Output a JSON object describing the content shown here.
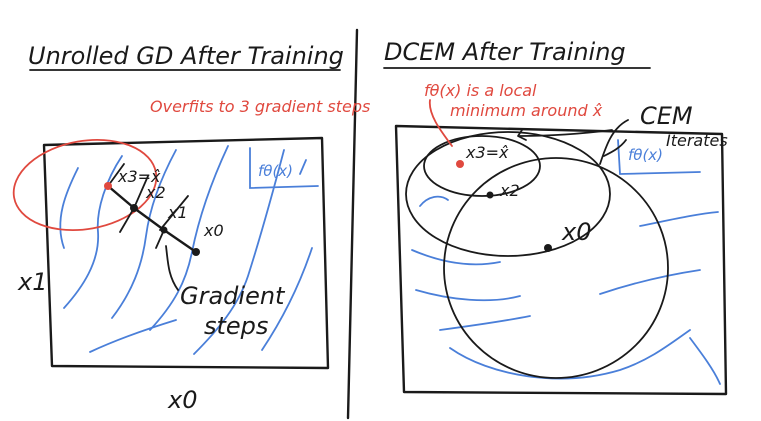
{
  "left_panel": {
    "title": "Unrolled GD After Training",
    "annotation": "Overfits to 3 gradient steps",
    "func_label": "fθ(x)",
    "points": [
      "x3=x̂",
      "x2",
      "x1",
      "x0"
    ],
    "gradient_label": [
      "Gradient",
      "steps"
    ],
    "axis_y": "x1",
    "axis_x": "x0"
  },
  "right_panel": {
    "title": "DCEM After Training",
    "annotation": [
      "fθ(x) is a local",
      "minimum around x̂"
    ],
    "cem_label": [
      "CEM",
      "Iterates"
    ],
    "func_label": "fθ(x)",
    "points": [
      "x3=x̂",
      "x2",
      "x0"
    ]
  },
  "colors": {
    "ink": "#1a1a1a",
    "contour": "#4a7fd9",
    "annotation": "#e0493f"
  }
}
